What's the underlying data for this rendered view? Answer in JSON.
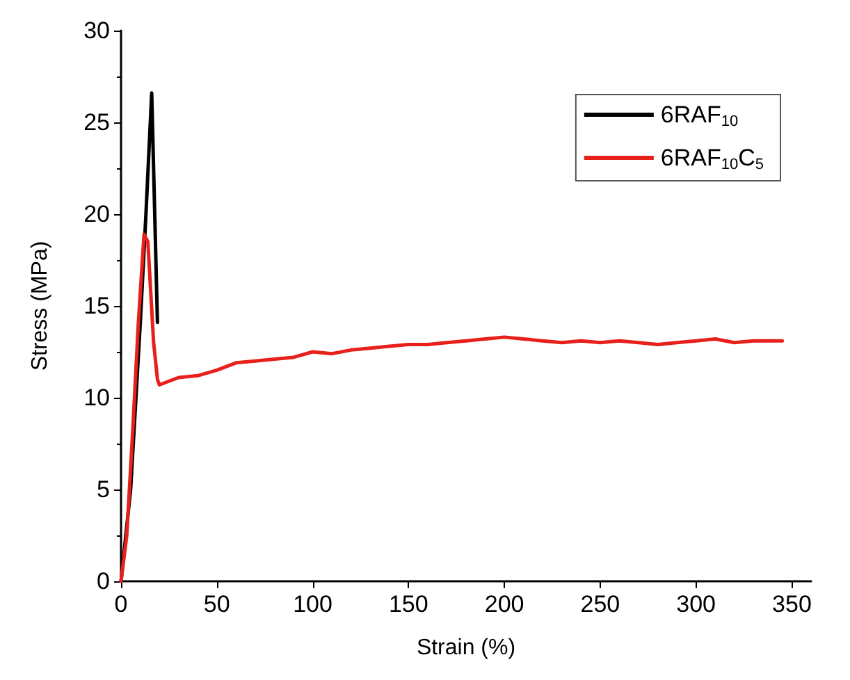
{
  "chart_data": {
    "type": "line",
    "xlabel": "Strain (%)",
    "ylabel": "Stress (MPa)",
    "xlim": [
      0,
      360
    ],
    "xticks": [
      0,
      50,
      100,
      150,
      200,
      250,
      300,
      350
    ],
    "ylim": [
      0,
      30
    ],
    "yticks": [
      0,
      5,
      10,
      15,
      20,
      25,
      30
    ],
    "grid": false,
    "legend": "top right",
    "marker": "none",
    "line_style": "solid",
    "series": [
      {
        "name": "6RAF$_{10}$",
        "color": "#000000",
        "x": [
          0,
          5,
          10,
          13,
          16,
          19
        ],
        "values": [
          0,
          5,
          14,
          20,
          26.6,
          14.1
        ]
      },
      {
        "name": "6RAF$_{10}$C$_{5}$",
        "color": "#e8201c",
        "x": [
          0,
          3,
          6,
          9,
          12,
          14,
          17,
          19,
          20,
          25,
          30,
          40,
          50,
          60,
          70,
          80,
          90,
          100,
          110,
          120,
          130,
          140,
          150,
          160,
          170,
          180,
          190,
          200,
          210,
          220,
          230,
          240,
          250,
          260,
          270,
          280,
          290,
          300,
          310,
          320,
          330,
          340,
          345
        ],
        "values": [
          0,
          2.5,
          8,
          14,
          18.9,
          18.5,
          13,
          11,
          10.7,
          10.9,
          11.1,
          11.2,
          11.5,
          11.9,
          12,
          12.1,
          12.2,
          12.5,
          12.4,
          12.6,
          12.7,
          12.8,
          12.9,
          12.9,
          13,
          13.1,
          13.2,
          13.3,
          13.2,
          13.1,
          13,
          13.1,
          13,
          13.1,
          13,
          12.9,
          13,
          13.1,
          13.2,
          13,
          13.1,
          13.1,
          13.1
        ]
      }
    ]
  }
}
